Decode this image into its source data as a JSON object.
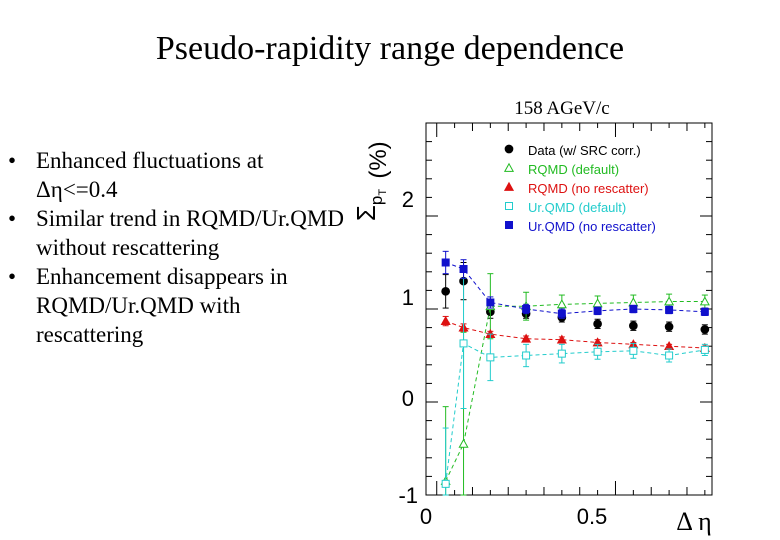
{
  "slide": {
    "title": "Pseudo-rapidity range dependence",
    "bullets": [
      "Enhanced fluctuations at Δη<=0.4",
      "Similar trend in RQMD/Ur.QMD without rescattering",
      "Enhancement disappears in RQMD/Ur.QMD with rescattering"
    ]
  },
  "chart_data": {
    "type": "scatter",
    "title": "158 AGeV/c",
    "xlabel": "Δ η",
    "ylabel": "Σ",
    "ylabel_sub": "p",
    "ylabel_subsub": "T",
    "ylabel_unit": "(%)",
    "xlim": [
      -0.03,
      0.77
    ],
    "ylim": [
      -1.0,
      3.0
    ],
    "x_ticks": [
      "0",
      "0.5"
    ],
    "y_ticks": [
      "-1",
      "0",
      "1",
      "2"
    ],
    "legend_position": "top-right",
    "series": [
      {
        "name": "Data (w/ SRC corr.)",
        "color": "#000000",
        "marker": "filled-circle",
        "connect": false,
        "x": [
          0.025,
          0.075,
          0.15,
          0.25,
          0.35,
          0.45,
          0.55,
          0.65,
          0.75
        ],
        "y": [
          1.19,
          1.3,
          0.97,
          0.95,
          0.91,
          0.84,
          0.82,
          0.81,
          0.78
        ],
        "err": [
          0.18,
          0.2,
          0.07,
          0.05,
          0.05,
          0.05,
          0.05,
          0.05,
          0.05
        ]
      },
      {
        "name": "RQMD (default)",
        "color": "#22bb22",
        "marker": "open-triangle",
        "connect": true,
        "x": [
          0.025,
          0.075,
          0.15,
          0.25,
          0.35,
          0.45,
          0.55,
          0.65,
          0.75
        ],
        "y": [
          -0.85,
          -0.45,
          1.03,
          1.03,
          1.05,
          1.06,
          1.07,
          1.08,
          1.08
        ],
        "err": [
          0.8,
          1.2,
          0.35,
          0.15,
          0.1,
          0.08,
          0.08,
          0.08,
          0.07
        ]
      },
      {
        "name": "RQMD (no rescatter)",
        "color": "#dd1111",
        "marker": "filled-triangle",
        "connect": true,
        "x": [
          0.025,
          0.075,
          0.15,
          0.25,
          0.35,
          0.45,
          0.55,
          0.65,
          0.75
        ],
        "y": [
          0.87,
          0.8,
          0.73,
          0.68,
          0.67,
          0.64,
          0.62,
          0.6,
          0.58
        ],
        "err": [
          0.05,
          0.04,
          0.03,
          0.03,
          0.03,
          0.03,
          0.02,
          0.02,
          0.02
        ]
      },
      {
        "name": "Ur.QMD (default)",
        "color": "#22cccc",
        "marker": "open-square",
        "connect": true,
        "x": [
          0.025,
          0.075,
          0.15,
          0.25,
          0.35,
          0.45,
          0.55,
          0.65,
          0.75
        ],
        "y": [
          -0.88,
          0.63,
          0.48,
          0.5,
          0.52,
          0.54,
          0.55,
          0.5,
          0.56
        ],
        "err": [
          0.6,
          0.7,
          0.25,
          0.12,
          0.1,
          0.08,
          0.08,
          0.07,
          0.06
        ]
      },
      {
        "name": "Ur.QMD (no rescatter)",
        "color": "#1111cc",
        "marker": "filled-square",
        "connect": true,
        "x": [
          0.025,
          0.075,
          0.15,
          0.25,
          0.35,
          0.45,
          0.55,
          0.65,
          0.75
        ],
        "y": [
          1.5,
          1.43,
          1.07,
          1.0,
          0.95,
          0.98,
          1.0,
          0.99,
          0.97
        ],
        "err": [
          0.12,
          0.1,
          0.06,
          0.05,
          0.05,
          0.04,
          0.04,
          0.04,
          0.04
        ]
      }
    ]
  }
}
